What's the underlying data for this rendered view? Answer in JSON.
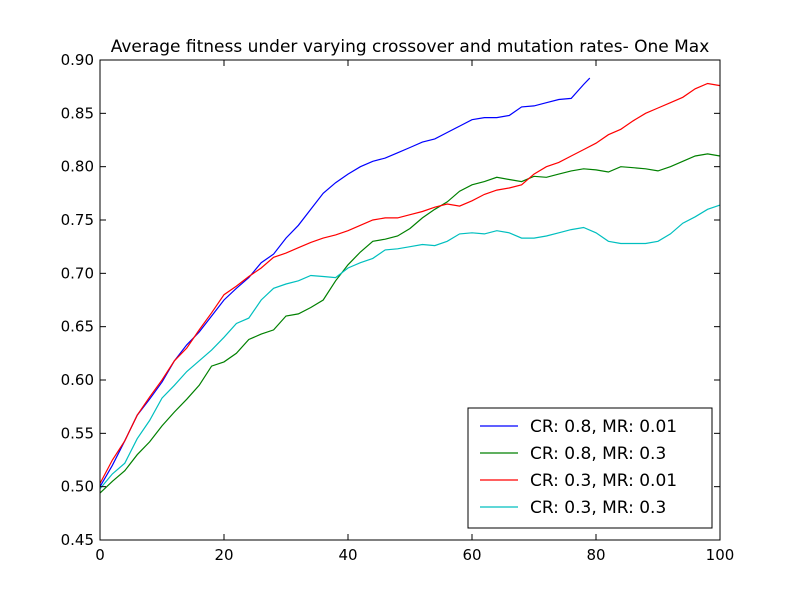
{
  "chart_data": {
    "type": "line",
    "title": "Average fitness under varying crossover and mutation rates- One Max",
    "xlabel": "",
    "ylabel": "",
    "xlim": [
      0,
      100
    ],
    "ylim": [
      0.45,
      0.9
    ],
    "xticks": [
      0,
      20,
      40,
      60,
      80,
      100
    ],
    "yticks": [
      0.45,
      0.5,
      0.55,
      0.6,
      0.65,
      0.7,
      0.75,
      0.8,
      0.85,
      0.9
    ],
    "xtick_labels": [
      "0",
      "20",
      "40",
      "60",
      "80",
      "100"
    ],
    "ytick_labels": [
      "0.45",
      "0.50",
      "0.55",
      "0.60",
      "0.65",
      "0.70",
      "0.75",
      "0.80",
      "0.85",
      "0.90"
    ],
    "grid": false,
    "legend_position": "bottom-right",
    "series": [
      {
        "name": "CR: 0.8, MR: 0.01",
        "color": "#0000ff",
        "x": [
          0,
          2,
          4,
          6,
          8,
          10,
          12,
          14,
          16,
          18,
          20,
          22,
          24,
          26,
          28,
          30,
          32,
          34,
          36,
          38,
          40,
          42,
          44,
          46,
          48,
          50,
          52,
          54,
          56,
          58,
          60,
          62,
          64,
          66,
          68,
          70,
          72,
          74,
          76,
          78,
          79
        ],
        "y": [
          0.5,
          0.52,
          0.543,
          0.567,
          0.582,
          0.598,
          0.618,
          0.633,
          0.645,
          0.66,
          0.675,
          0.686,
          0.696,
          0.71,
          0.718,
          0.733,
          0.745,
          0.76,
          0.775,
          0.785,
          0.793,
          0.8,
          0.805,
          0.808,
          0.813,
          0.818,
          0.823,
          0.826,
          0.832,
          0.838,
          0.844,
          0.846,
          0.846,
          0.848,
          0.856,
          0.857,
          0.86,
          0.863,
          0.864,
          0.877,
          0.883
        ]
      },
      {
        "name": "CR: 0.8, MR: 0.3",
        "color": "#008000",
        "x": [
          0,
          2,
          4,
          6,
          8,
          10,
          12,
          14,
          16,
          18,
          20,
          22,
          24,
          26,
          28,
          30,
          32,
          34,
          36,
          38,
          40,
          42,
          44,
          46,
          48,
          50,
          52,
          54,
          56,
          58,
          60,
          62,
          64,
          66,
          68,
          70,
          72,
          74,
          76,
          78,
          80,
          82,
          84,
          86,
          88,
          90,
          92,
          94,
          96,
          98,
          100
        ],
        "y": [
          0.494,
          0.505,
          0.515,
          0.53,
          0.542,
          0.557,
          0.57,
          0.582,
          0.595,
          0.613,
          0.617,
          0.625,
          0.638,
          0.643,
          0.647,
          0.66,
          0.662,
          0.668,
          0.675,
          0.693,
          0.708,
          0.72,
          0.73,
          0.732,
          0.735,
          0.742,
          0.752,
          0.76,
          0.767,
          0.777,
          0.783,
          0.786,
          0.79,
          0.788,
          0.786,
          0.791,
          0.79,
          0.793,
          0.796,
          0.798,
          0.797,
          0.795,
          0.8,
          0.799,
          0.798,
          0.796,
          0.8,
          0.805,
          0.81,
          0.812,
          0.81
        ]
      },
      {
        "name": "CR: 0.3, MR: 0.01",
        "color": "#ff0000",
        "x": [
          0,
          2,
          4,
          6,
          8,
          10,
          12,
          14,
          16,
          18,
          20,
          22,
          24,
          26,
          28,
          30,
          32,
          34,
          36,
          38,
          40,
          42,
          44,
          46,
          48,
          50,
          52,
          54,
          56,
          58,
          60,
          62,
          64,
          66,
          68,
          70,
          72,
          74,
          76,
          78,
          80,
          82,
          84,
          86,
          88,
          90,
          92,
          94,
          96,
          98,
          100
        ],
        "y": [
          0.503,
          0.525,
          0.543,
          0.567,
          0.584,
          0.6,
          0.618,
          0.63,
          0.647,
          0.663,
          0.68,
          0.688,
          0.697,
          0.705,
          0.715,
          0.719,
          0.724,
          0.729,
          0.733,
          0.736,
          0.74,
          0.745,
          0.75,
          0.752,
          0.752,
          0.755,
          0.758,
          0.762,
          0.765,
          0.763,
          0.768,
          0.774,
          0.778,
          0.78,
          0.783,
          0.793,
          0.8,
          0.804,
          0.81,
          0.816,
          0.822,
          0.83,
          0.835,
          0.843,
          0.85,
          0.855,
          0.86,
          0.865,
          0.873,
          0.878,
          0.876
        ]
      },
      {
        "name": "CR: 0.3, MR: 0.3",
        "color": "#00bfbf",
        "x": [
          0,
          2,
          4,
          6,
          8,
          10,
          12,
          14,
          16,
          18,
          20,
          22,
          24,
          26,
          28,
          30,
          32,
          34,
          36,
          38,
          40,
          42,
          44,
          46,
          48,
          50,
          52,
          54,
          56,
          58,
          60,
          62,
          64,
          66,
          68,
          70,
          72,
          74,
          76,
          78,
          80,
          82,
          84,
          86,
          88,
          90,
          92,
          94,
          96,
          98,
          100
        ],
        "y": [
          0.498,
          0.512,
          0.522,
          0.545,
          0.562,
          0.583,
          0.595,
          0.608,
          0.618,
          0.628,
          0.64,
          0.653,
          0.658,
          0.675,
          0.686,
          0.69,
          0.693,
          0.698,
          0.697,
          0.696,
          0.705,
          0.71,
          0.714,
          0.722,
          0.723,
          0.725,
          0.727,
          0.726,
          0.73,
          0.737,
          0.738,
          0.737,
          0.74,
          0.738,
          0.733,
          0.733,
          0.735,
          0.738,
          0.741,
          0.743,
          0.738,
          0.73,
          0.728,
          0.728,
          0.728,
          0.73,
          0.737,
          0.747,
          0.753,
          0.76,
          0.764
        ]
      }
    ]
  }
}
